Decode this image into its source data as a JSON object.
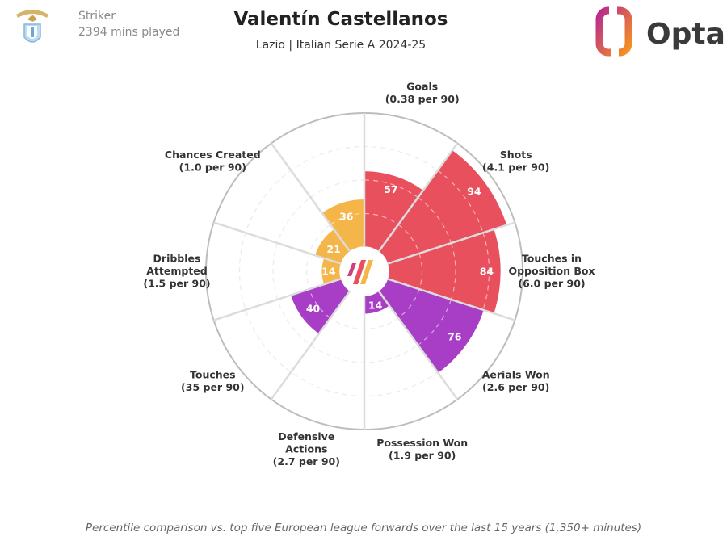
{
  "header": {
    "player_name": "Valentín Castellanos",
    "subtitle": "Lazio | Italian Serie A 2024-25",
    "position": "Striker",
    "minutes": "2394 mins played",
    "brand": "Opta"
  },
  "colors": {
    "attacking": "#e8505e",
    "possession": "#f5b649",
    "defending": "#a83ec6",
    "spoke": "#dcdcdc",
    "ring_dash": "#ececec",
    "outer_ring": "#bdbdbd"
  },
  "chart_data": {
    "type": "polar-bar",
    "scale": [
      0,
      100
    ],
    "metrics": [
      {
        "name": "Goals",
        "label": [
          "Goals",
          "(0.38 per 90)"
        ],
        "percentile": 57,
        "group": "attacking"
      },
      {
        "name": "Shots",
        "label": [
          "Shots",
          "(4.1 per 90)"
        ],
        "percentile": 94,
        "group": "attacking"
      },
      {
        "name": "Touches in Opposition Box",
        "label": [
          "Touches in",
          "Opposition Box",
          "(6.0 per 90)"
        ],
        "percentile": 84,
        "group": "attacking"
      },
      {
        "name": "Aerials Won",
        "label": [
          "Aerials Won",
          "(2.6 per 90)"
        ],
        "percentile": 76,
        "group": "defending"
      },
      {
        "name": "Possession Won",
        "label": [
          "Possession Won",
          "(1.9 per 90)"
        ],
        "percentile": 14,
        "group": "defending"
      },
      {
        "name": "Defensive Actions",
        "label": [
          "Defensive",
          "Actions",
          "(2.7 per 90)"
        ],
        "percentile": 0,
        "group": "defending"
      },
      {
        "name": "Touches",
        "label": [
          "Touches",
          "(35 per 90)"
        ],
        "percentile": 40,
        "group": "defending"
      },
      {
        "name": "Dribbles Attempted",
        "label": [
          "Dribbles",
          "Attempted",
          "(1.5 per 90)"
        ],
        "percentile": 14,
        "group": "possession"
      },
      {
        "name": "Chances Created",
        "label": [
          "Chances Created",
          "(1.0 per 90)"
        ],
        "percentile": 21,
        "group": "possession"
      },
      {
        "name": "Chances Created (2)",
        "label": [],
        "percentile": 36,
        "group": "possession"
      }
    ]
  },
  "footnote": "Percentile comparison vs. top five European league forwards over the last 15 years (1,350+ minutes)"
}
